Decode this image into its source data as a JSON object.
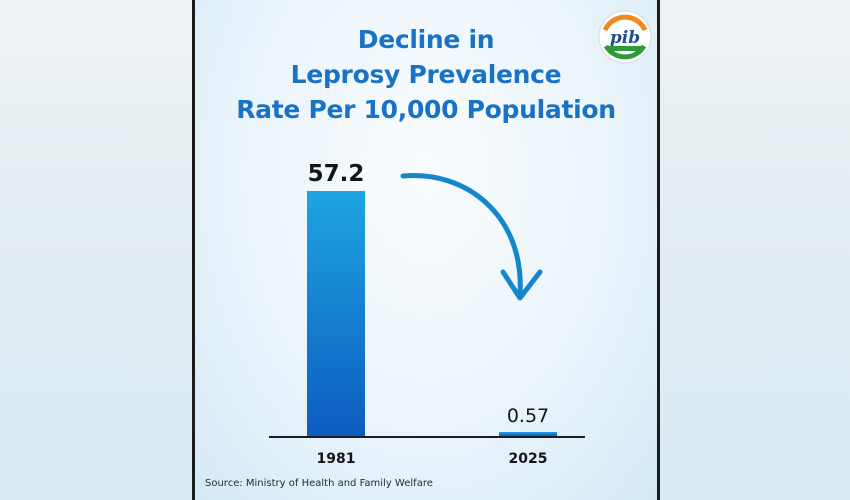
{
  "title_lines": [
    "Decline in",
    "Leprosy Prevalence",
    "Rate Per 10,000 Population"
  ],
  "source": "Source: Ministry of Health and Family Welfare",
  "logo_text": "pib",
  "colors": {
    "title": "#1a72c4",
    "bar_top": "#1ea4e0",
    "bar_bottom": "#0d5cc0",
    "arrow": "#1585cc",
    "axis": "#1c1c1c"
  },
  "chart_data": {
    "type": "bar",
    "categories": [
      "1981",
      "2025"
    ],
    "values": [
      57.2,
      0.57
    ],
    "value_labels": [
      "57.2",
      "0.57"
    ],
    "title": "Decline in Leprosy Prevalence Rate Per 10,000 Population",
    "xlabel": "",
    "ylabel": "",
    "ylim": [
      0,
      57.2
    ],
    "grid": false,
    "legend": "none",
    "annotation": "curved downward arrow from 1981 bar to 2025 bar"
  }
}
